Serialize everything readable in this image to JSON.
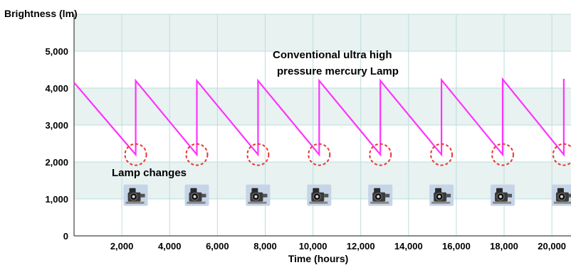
{
  "chart_data": {
    "type": "line",
    "ylabel": "Brightness (lm)",
    "xlabel": "Time (hours)",
    "xlim": [
      0,
      20800
    ],
    "ylim": [
      0,
      5000
    ],
    "x_ticks": [
      "2,000",
      "4,000",
      "6,000",
      "8,000",
      "10,000",
      "12,000",
      "14,000",
      "16,000",
      "18,000",
      "20,000"
    ],
    "y_ticks": [
      "0",
      "1,000",
      "2,000",
      "3,000",
      "4,000",
      "5,000"
    ],
    "grid": true,
    "series": [
      {
        "name": "Conventional ultra high pressure mercury Lamp",
        "color": "#ff33ff",
        "x": [
          0,
          2580,
          2580,
          5140,
          5140,
          7700,
          7700,
          10260,
          10260,
          12820,
          12820,
          15380,
          15380,
          17940,
          17940,
          20500,
          20500
        ],
        "y": [
          4150,
          2200,
          4200,
          2200,
          4200,
          2200,
          4200,
          2200,
          4200,
          2200,
          4200,
          2200,
          4220,
          2200,
          4240,
          2200,
          4250
        ]
      }
    ],
    "lamp_change_markers": {
      "x": [
        2580,
        5140,
        7700,
        10260,
        12820,
        15380,
        17940,
        20500
      ],
      "y": 2200,
      "icon": "projector-lamp-icon",
      "icon_y": 1100,
      "circle_color": "#ee3333"
    },
    "annotations": {
      "series_label_line1": "Conventional ultra high",
      "series_label_line2": "pressure mercury Lamp",
      "lamp_changes": "Lamp changes"
    },
    "colors": {
      "band_fill": "#e8f2f1",
      "grid": "#bcdedd"
    }
  }
}
